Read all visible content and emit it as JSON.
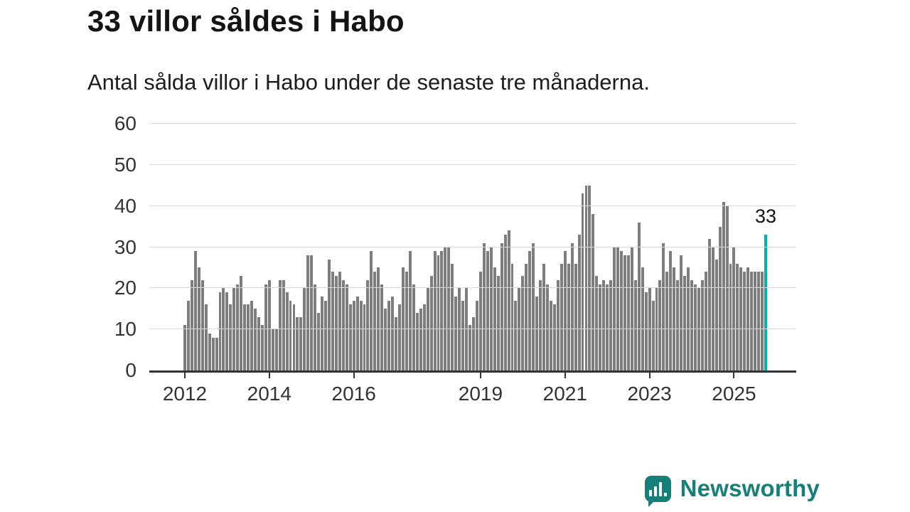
{
  "header": {
    "title": "33 villor såldes i Habo",
    "subtitle": "Antal sålda villor i Habo under de senaste tre månaderna."
  },
  "chart_data": {
    "type": "bar",
    "title": "33 villor såldes i Habo",
    "subtitle": "Antal sålda villor i Habo under de senaste tre månaderna.",
    "xlabel": "",
    "ylabel": "",
    "ylim": [
      0,
      60
    ],
    "yticks": [
      0,
      10,
      20,
      30,
      40,
      50,
      60
    ],
    "grid": true,
    "legend_position": "none",
    "start_year": 2012,
    "x_tick_years": [
      2012,
      2014,
      2016,
      2019,
      2021,
      2023,
      2025
    ],
    "values": [
      11,
      17,
      22,
      29,
      25,
      22,
      16,
      9,
      8,
      8,
      19,
      20,
      19,
      16,
      20,
      21,
      23,
      16,
      16,
      17,
      15,
      13,
      11,
      21,
      22,
      10,
      10,
      22,
      22,
      19,
      17,
      16,
      13,
      13,
      20,
      28,
      28,
      21,
      14,
      18,
      17,
      27,
      24,
      23,
      24,
      22,
      21,
      16,
      17,
      18,
      17,
      16,
      22,
      29,
      24,
      25,
      21,
      15,
      17,
      18,
      13,
      16,
      25,
      24,
      29,
      21,
      14,
      15,
      16,
      20,
      23,
      29,
      28,
      29,
      30,
      30,
      26,
      18,
      20,
      17,
      20,
      11,
      13,
      17,
      24,
      31,
      29,
      30,
      25,
      23,
      31,
      33,
      34,
      26,
      17,
      20,
      23,
      26,
      29,
      31,
      18,
      22,
      26,
      21,
      17,
      16,
      22,
      26,
      29,
      26,
      31,
      26,
      33,
      43,
      45,
      45,
      38,
      23,
      21,
      22,
      21,
      22,
      30,
      30,
      29,
      28,
      28,
      30,
      22,
      36,
      25,
      19,
      20,
      17,
      20,
      22,
      31,
      24,
      29,
      25,
      22,
      28,
      23,
      25,
      22,
      21,
      20,
      22,
      24,
      32,
      30,
      27,
      35,
      41,
      40,
      26,
      30,
      26,
      25,
      24,
      25,
      24,
      24,
      24,
      24,
      33
    ],
    "highlight_index": 165,
    "highlight_value_label": "33",
    "bar_color": "#7d7d7d",
    "highlight_color": "#00b2ad",
    "gridline_color": "#d9d9d9",
    "axis_color": "#333333"
  },
  "branding": {
    "logo_text": "Newsworthy",
    "brand_color": "#15807a"
  }
}
